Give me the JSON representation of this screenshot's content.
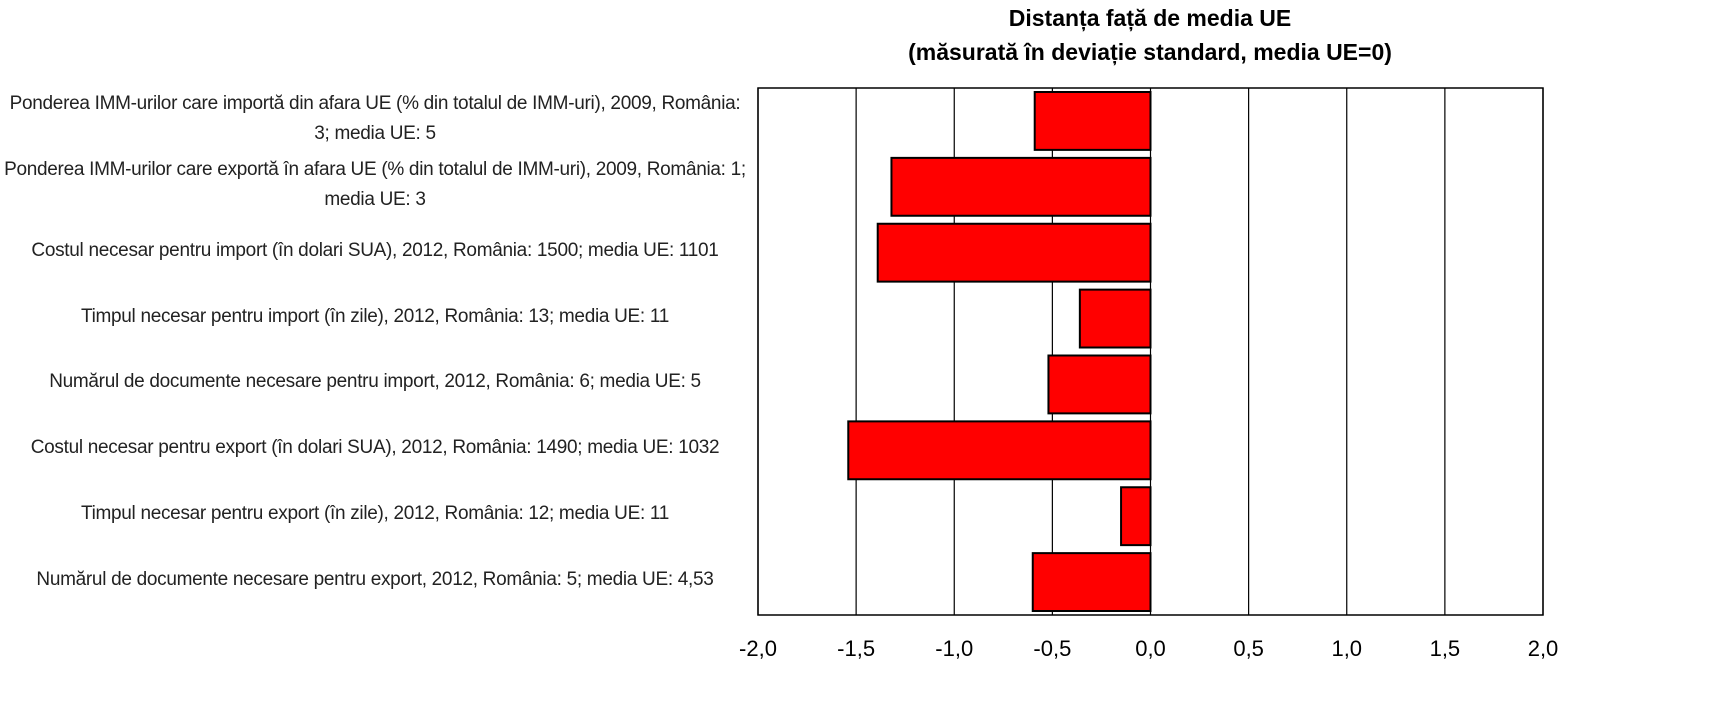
{
  "chart_data": {
    "type": "hbar",
    "title": "Distanța față de media UE",
    "subtitle": "(măsurată în deviație standard, media UE=0)",
    "categories": [
      "Ponderea IMM-urilor care importă din afara UE (% din totalul de IMM-uri), 2009, România: 3; media UE: 5",
      "Ponderea IMM-urilor care exportă în afara UE (% din totalul de IMM-uri), 2009, România: 1; media UE: 3",
      "Costul necesar pentru import (în dolari SUA), 2012, România: 1500; media UE: 1101",
      "Timpul necesar pentru import (în zile), 2012, România: 13; media UE: 11",
      "Numărul de documente necesare pentru import, 2012, România: 6; media UE: 5",
      "Costul necesar pentru export (în dolari SUA), 2012, România: 1490; media UE: 1032",
      "Timpul necesar pentru export (în zile), 2012, România: 12; media UE: 11",
      "Numărul de documente necesare pentru export, 2012, România: 5; media UE: 4,53"
    ],
    "values": [
      -0.59,
      -1.32,
      -1.39,
      -0.36,
      -0.52,
      -1.54,
      -0.15,
      -0.6
    ],
    "color": "#ff0000",
    "xlim": [
      -2,
      2
    ],
    "xticks": [
      {
        "value": -2,
        "label": "-2,0"
      },
      {
        "value": -1.5,
        "label": "-1,5"
      },
      {
        "value": -1,
        "label": "-1,0"
      },
      {
        "value": -0.5,
        "label": "-0,5"
      },
      {
        "value": 0,
        "label": "0,0"
      },
      {
        "value": 0.5,
        "label": "0,5"
      },
      {
        "value": 1,
        "label": "1,0"
      },
      {
        "value": 1.5,
        "label": "1,5"
      },
      {
        "value": 2,
        "label": "2,0"
      }
    ],
    "grid": true
  }
}
